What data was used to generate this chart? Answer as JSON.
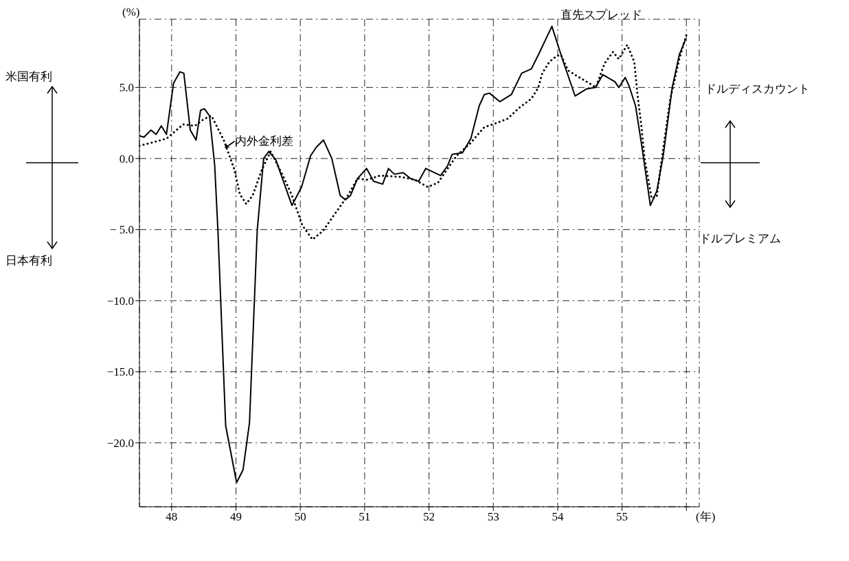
{
  "chart_data": {
    "type": "line",
    "xlabel": "(年)",
    "ylabel": "(%)",
    "xlim": [
      47.5,
      56.2
    ],
    "xticks": [
      48,
      49,
      50,
      51,
      52,
      53,
      54,
      55,
      {
        "value": 56,
        "label": null
      }
    ],
    "ylim": [
      -24.5,
      9.8
    ],
    "yticks": [
      {
        "value": 5,
        "label": "5.0"
      },
      {
        "value": 0,
        "label": "0.0"
      },
      {
        "value": -5,
        "label": "− 5.0"
      },
      {
        "value": -10,
        "label": "−10.0"
      },
      {
        "value": -15,
        "label": "−15.0"
      },
      {
        "value": -20,
        "label": "−20.0"
      }
    ],
    "grid": true,
    "marker": "none",
    "annotations": [
      "米国有利",
      "日本有利",
      "ドルディスカウント",
      "ドルプレミアム"
    ],
    "series": [
      {
        "name": "直先スプレッド",
        "color": "#000000",
        "line_style": "solid",
        "x": [
          47.5,
          47.57,
          47.68,
          47.76,
          47.84,
          47.92,
          48.03,
          48.13,
          48.19,
          48.29,
          48.38,
          48.45,
          48.51,
          48.59,
          48.67,
          48.72,
          48.84,
          49.01,
          49.11,
          49.21,
          49.33,
          49.43,
          49.51,
          49.62,
          49.87,
          50.02,
          50.16,
          50.25,
          50.36,
          50.49,
          50.62,
          50.7,
          50.78,
          50.89,
          51.03,
          51.14,
          51.28,
          51.37,
          51.46,
          51.6,
          51.71,
          51.84,
          51.95,
          52.18,
          52.29,
          52.36,
          52.52,
          52.65,
          52.78,
          52.86,
          52.94,
          53.1,
          53.28,
          53.44,
          53.59,
          53.7,
          53.91,
          54.08,
          54.27,
          54.45,
          54.59,
          54.7,
          54.89,
          54.95,
          55.05,
          55.11,
          55.21,
          55.3,
          55.44,
          55.54,
          55.64,
          55.78,
          55.89,
          55.98
        ],
        "values": [
          1.6,
          1.5,
          2.0,
          1.7,
          2.3,
          1.7,
          5.3,
          6.1,
          6.0,
          2.0,
          1.3,
          3.4,
          3.5,
          3.0,
          -0.5,
          -5.1,
          -18.8,
          -22.8,
          -21.9,
          -18.6,
          -5.1,
          0.0,
          0.5,
          -0.1,
          -3.3,
          -2.0,
          0.2,
          0.8,
          1.3,
          0.0,
          -2.6,
          -2.9,
          -2.6,
          -1.4,
          -0.7,
          -1.6,
          -1.8,
          -0.7,
          -1.1,
          -1.0,
          -1.4,
          -1.6,
          -0.7,
          -1.2,
          -0.5,
          0.3,
          0.4,
          1.4,
          3.7,
          4.5,
          4.6,
          4.0,
          4.5,
          6.0,
          6.3,
          7.3,
          9.3,
          6.9,
          4.4,
          4.9,
          5.0,
          5.9,
          5.4,
          5.0,
          5.7,
          5.1,
          3.7,
          1.1,
          -3.3,
          -2.3,
          0.2,
          5.0,
          7.3,
          8.3
        ]
      },
      {
        "name": "内外金利差",
        "color": "#000000",
        "line_style": "dotted",
        "x": [
          47.5,
          47.68,
          47.92,
          48.18,
          48.36,
          48.51,
          48.62,
          48.81,
          48.97,
          49.06,
          49.16,
          49.26,
          49.41,
          49.54,
          49.73,
          49.87,
          50.03,
          50.19,
          50.35,
          50.52,
          50.74,
          50.89,
          51.03,
          51.24,
          51.57,
          51.78,
          51.98,
          52.14,
          52.29,
          52.43,
          52.65,
          52.76,
          52.86,
          53.05,
          53.22,
          53.41,
          53.59,
          53.7,
          53.76,
          53.87,
          53.98,
          54.05,
          54.16,
          54.3,
          54.49,
          54.59,
          54.73,
          54.86,
          54.95,
          55.08,
          55.19,
          55.24,
          55.3,
          55.35,
          55.46,
          55.54,
          55.6,
          55.75,
          55.89,
          56.0
        ],
        "values": [
          0.9,
          1.1,
          1.4,
          2.4,
          2.3,
          2.8,
          3.0,
          1.3,
          -0.7,
          -2.5,
          -3.2,
          -2.6,
          -0.7,
          0.5,
          -1.2,
          -2.6,
          -4.7,
          -5.7,
          -5.1,
          -4.0,
          -2.6,
          -1.4,
          -1.5,
          -1.2,
          -1.3,
          -1.5,
          -2.0,
          -1.7,
          -0.7,
          0.2,
          1.1,
          1.7,
          2.2,
          2.5,
          2.8,
          3.6,
          4.2,
          5.0,
          6.0,
          6.8,
          7.2,
          7.3,
          6.2,
          5.8,
          5.3,
          5.0,
          6.7,
          7.5,
          7.0,
          8.0,
          6.8,
          4.5,
          2.3,
          0.0,
          -2.8,
          -2.7,
          -0.6,
          4.2,
          7.0,
          8.7
        ]
      }
    ]
  }
}
